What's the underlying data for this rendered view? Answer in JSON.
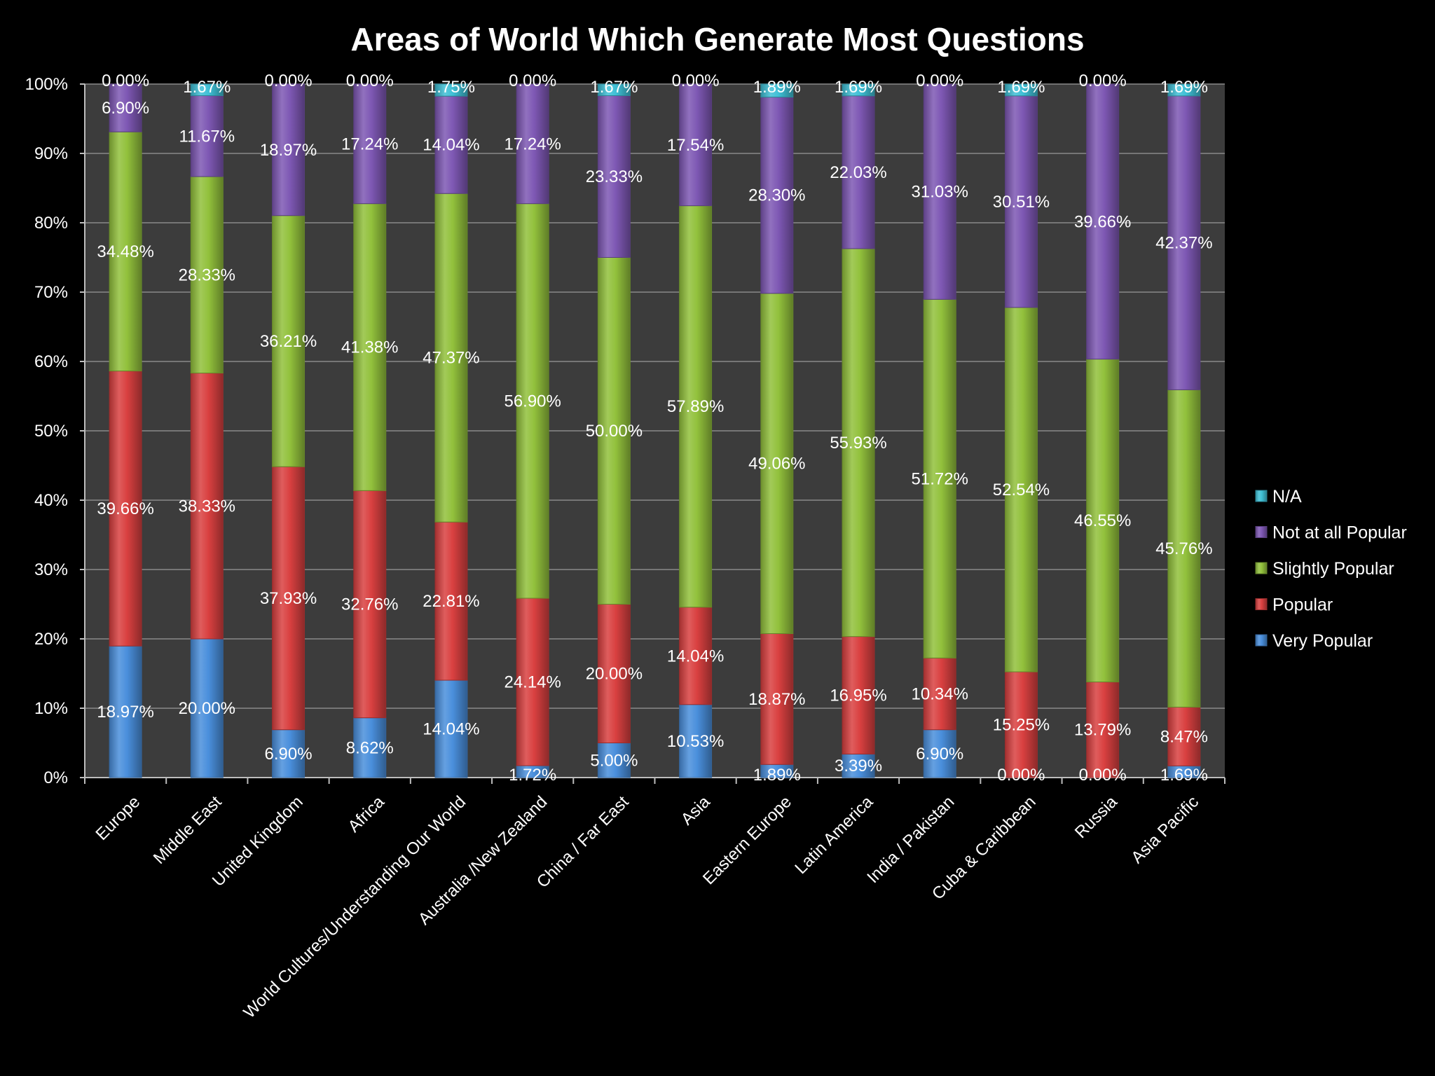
{
  "chart_data": {
    "type": "bar",
    "stacked": true,
    "title": "Areas of World Which Generate Most Questions",
    "xlabel": "",
    "ylabel": "",
    "ylim": [
      0,
      100
    ],
    "yticks": [
      "0%",
      "10%",
      "20%",
      "30%",
      "40%",
      "50%",
      "60%",
      "70%",
      "80%",
      "90%",
      "100%"
    ],
    "grid": true,
    "legend_position": "right",
    "categories": [
      "Europe",
      "Middle East",
      "United Kingdom",
      "Africa",
      "World Cultures/Understanding Our World",
      "Australia /New Zealand",
      "China / Far East",
      "Asia",
      "Eastern Europe",
      "Latin America",
      "India  / Pakistan",
      "Cuba & Caribbean",
      "Russia",
      "Asia Pacific"
    ],
    "series": [
      {
        "name": "Very Popular",
        "color": "#4a8fdc",
        "values": [
          18.97,
          20.0,
          6.9,
          8.62,
          14.04,
          1.72,
          5.0,
          10.53,
          1.89,
          3.39,
          6.9,
          0.0,
          0.0,
          1.69
        ],
        "labels": [
          "18.97%",
          "20.00%",
          "6.90%",
          "8.62%",
          "14.04%",
          "1.72%",
          "5.00%",
          "10.53%",
          "1.89%",
          "3.39%",
          "6.90%",
          "0.00%",
          "0.00%",
          "1.69%"
        ]
      },
      {
        "name": "Popular",
        "color": "#d94040",
        "values": [
          39.66,
          38.33,
          37.93,
          32.76,
          22.81,
          24.14,
          20.0,
          14.04,
          18.87,
          16.95,
          10.34,
          15.25,
          13.79,
          8.47
        ],
        "labels": [
          "39.66%",
          "38.33%",
          "37.93%",
          "32.76%",
          "22.81%",
          "24.14%",
          "20.00%",
          "14.04%",
          "18.87%",
          "16.95%",
          "10.34%",
          "15.25%",
          "13.79%",
          "8.47%"
        ]
      },
      {
        "name": "Slightly Popular",
        "color": "#92c13c",
        "values": [
          34.48,
          28.33,
          36.21,
          41.38,
          47.37,
          56.9,
          50.0,
          57.89,
          49.06,
          55.93,
          51.72,
          52.54,
          46.55,
          45.76
        ],
        "labels": [
          "34.48%",
          "28.33%",
          "36.21%",
          "41.38%",
          "47.37%",
          "56.90%",
          "50.00%",
          "57.89%",
          "49.06%",
          "55.93%",
          "51.72%",
          "52.54%",
          "46.55%",
          "45.76%"
        ]
      },
      {
        "name": "Not at all Popular",
        "color": "#7e58b4",
        "values": [
          6.9,
          11.67,
          18.97,
          17.24,
          14.04,
          17.24,
          23.33,
          17.54,
          28.3,
          22.03,
          31.03,
          30.51,
          39.66,
          42.37
        ],
        "labels": [
          "6.90%",
          "11.67%",
          "18.97%",
          "17.24%",
          "14.04%",
          "17.24%",
          "23.33%",
          "17.54%",
          "28.30%",
          "22.03%",
          "31.03%",
          "30.51%",
          "39.66%",
          "42.37%"
        ]
      },
      {
        "name": "N/A",
        "color": "#3fc0d6",
        "values": [
          0.0,
          1.67,
          0.0,
          0.0,
          1.75,
          0.0,
          1.67,
          0.0,
          1.89,
          1.69,
          0.0,
          1.69,
          0.0,
          1.69
        ],
        "labels": [
          "0.00%",
          "1.67%",
          "0.00%",
          "0.00%",
          "1.75%",
          "0.00%",
          "1.67%",
          "0.00%",
          "1.89%",
          "1.69%",
          "0.00%",
          "1.69%",
          "0.00%",
          "1.69%"
        ]
      }
    ],
    "legend_order": [
      "N/A",
      "Not at all Popular",
      "Slightly Popular",
      "Popular",
      "Very Popular"
    ],
    "colors": {
      "background": "#000000",
      "plot_area": "#3c3c3c",
      "gridline": "#8a8a8a",
      "text": "#ffffff"
    }
  }
}
